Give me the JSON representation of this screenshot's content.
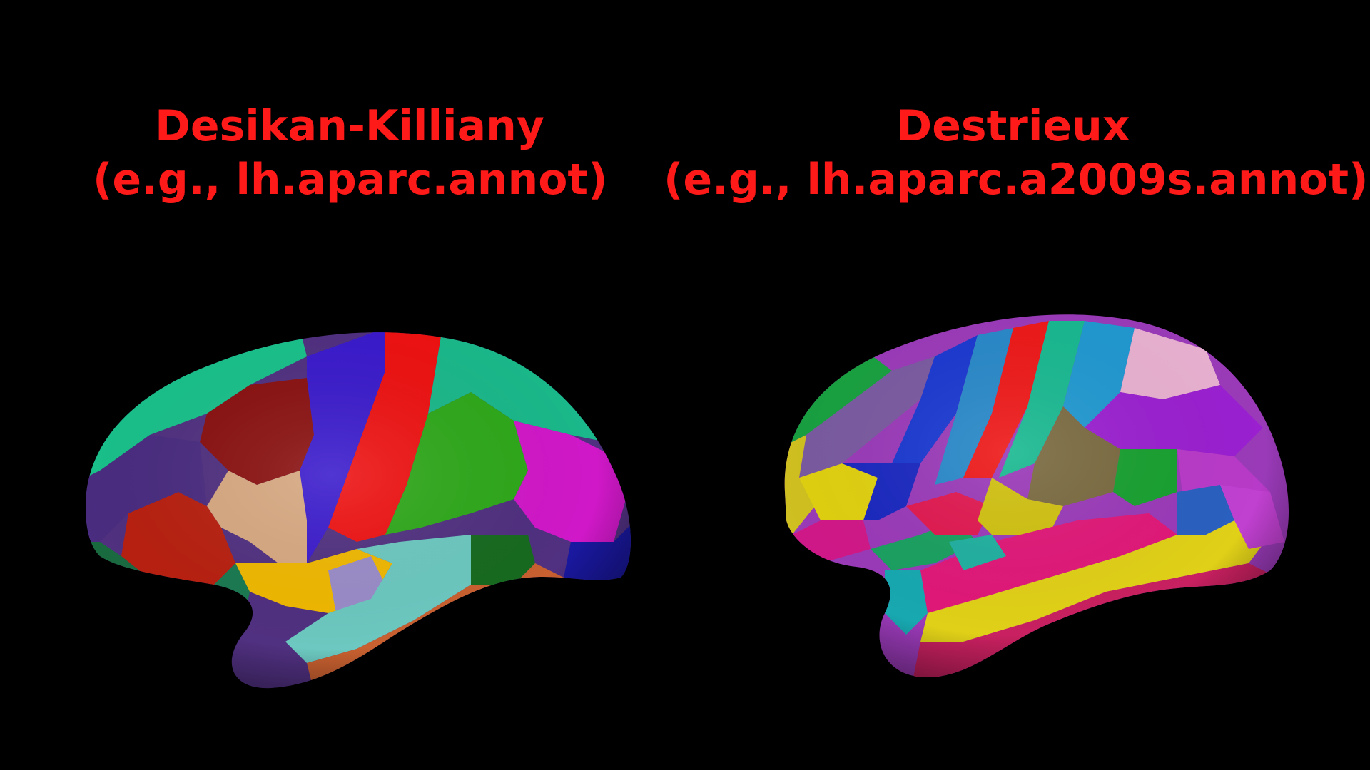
{
  "atlases": [
    {
      "name": "Desikan-Killiany",
      "example": "(e.g., lh.aparc.annot)"
    },
    {
      "name": "Destrieux",
      "example": "(e.g., lh.aparc.a2009s.annot)"
    }
  ],
  "colors": {
    "background": "#000000",
    "label_text": "#ff1a1a"
  }
}
